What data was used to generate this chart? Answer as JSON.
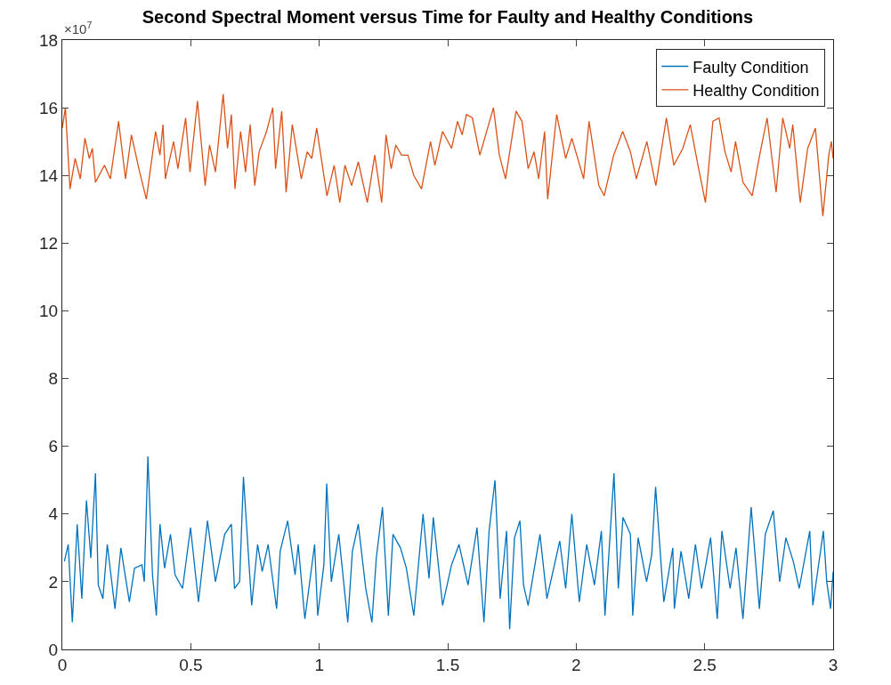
{
  "chart_data": {
    "type": "line",
    "title": "Second Spectral Moment versus Time for Faulty and Healthy Conditions",
    "annotations": [
      "×10$^{7}$"
    ],
    "xlim": [
      0,
      3
    ],
    "xticks": [
      0,
      0.5,
      1,
      1.5,
      2,
      2.5,
      3
    ],
    "ylim": [
      0,
      18
    ],
    "yticks": [
      0,
      2,
      4,
      6,
      8,
      10,
      12,
      14,
      16,
      18
    ],
    "grid": false,
    "legend": "top right",
    "line_style": "solid",
    "marker": "none",
    "series": [
      {
        "name": "Faulty Condition",
        "color": "#0072bd",
        "x": [
          0.008,
          0.023,
          0.039,
          0.058,
          0.076,
          0.094,
          0.111,
          0.129,
          0.14,
          0.158,
          0.175,
          0.205,
          0.228,
          0.261,
          0.281,
          0.31,
          0.319,
          0.333,
          0.351,
          0.366,
          0.38,
          0.398,
          0.421,
          0.439,
          0.468,
          0.499,
          0.53,
          0.565,
          0.596,
          0.632,
          0.658,
          0.67,
          0.69,
          0.705,
          0.737,
          0.76,
          0.778,
          0.801,
          0.834,
          0.848,
          0.877,
          0.906,
          0.918,
          0.944,
          0.982,
          0.994,
          1.018,
          1.029,
          1.047,
          1.076,
          1.111,
          1.129,
          1.152,
          1.181,
          1.205,
          1.222,
          1.246,
          1.269,
          1.287,
          1.316,
          1.339,
          1.368,
          1.404,
          1.427,
          1.444,
          1.48,
          1.515,
          1.544,
          1.579,
          1.614,
          1.641,
          1.661,
          1.684,
          1.704,
          1.729,
          1.741,
          1.76,
          1.781,
          1.795,
          1.813,
          1.859,
          1.886,
          1.936,
          1.959,
          1.983,
          2.012,
          2.041,
          2.071,
          2.098,
          2.112,
          2.147,
          2.164,
          2.182,
          2.211,
          2.22,
          2.241,
          2.274,
          2.294,
          2.309,
          2.341,
          2.376,
          2.382,
          2.408,
          2.438,
          2.464,
          2.488,
          2.523,
          2.549,
          2.567,
          2.599,
          2.622,
          2.649,
          2.681,
          2.713,
          2.736,
          2.767,
          2.792,
          2.816,
          2.845,
          2.868,
          2.909,
          2.921,
          2.962,
          2.975,
          2.99,
          3.0
        ],
        "values": [
          2.6,
          3.1,
          0.8,
          3.7,
          1.5,
          4.4,
          2.7,
          5.2,
          1.9,
          1.5,
          3.1,
          1.2,
          3.0,
          1.4,
          2.4,
          2.5,
          2.0,
          5.7,
          2.2,
          1.0,
          3.7,
          2.4,
          3.4,
          2.2,
          1.8,
          3.6,
          1.4,
          3.8,
          2.0,
          3.4,
          3.7,
          1.8,
          2.0,
          5.1,
          1.3,
          3.1,
          2.3,
          3.1,
          1.2,
          2.9,
          3.8,
          2.2,
          3.1,
          0.9,
          3.1,
          1.0,
          2.5,
          4.9,
          2.0,
          3.4,
          0.8,
          2.9,
          3.7,
          1.8,
          0.8,
          2.7,
          4.2,
          1.0,
          3.4,
          3.0,
          2.4,
          1.0,
          4.0,
          2.1,
          3.9,
          1.3,
          2.5,
          3.1,
          1.9,
          3.6,
          0.8,
          3.5,
          5.0,
          1.5,
          3.5,
          0.6,
          3.3,
          3.8,
          1.9,
          1.3,
          3.4,
          1.5,
          3.2,
          1.8,
          4.0,
          1.4,
          3.1,
          1.9,
          3.5,
          1.0,
          5.2,
          1.8,
          3.9,
          3.4,
          1.0,
          3.3,
          2.0,
          2.8,
          4.8,
          1.4,
          3.0,
          1.2,
          2.9,
          1.5,
          3.1,
          1.8,
          3.3,
          0.9,
          3.5,
          1.8,
          3.0,
          0.9,
          4.2,
          1.2,
          3.4,
          4.1,
          2.0,
          3.3,
          2.6,
          1.8,
          3.5,
          1.3,
          3.5,
          2.0,
          1.2,
          2.3
        ]
      },
      {
        "name": "Healthy Condition",
        "color": "#d95319",
        "x": [
          0.0,
          0.012,
          0.03,
          0.05,
          0.07,
          0.088,
          0.105,
          0.117,
          0.129,
          0.164,
          0.187,
          0.219,
          0.246,
          0.269,
          0.298,
          0.327,
          0.363,
          0.38,
          0.392,
          0.401,
          0.433,
          0.45,
          0.48,
          0.497,
          0.526,
          0.556,
          0.573,
          0.596,
          0.626,
          0.643,
          0.658,
          0.672,
          0.694,
          0.713,
          0.731,
          0.749,
          0.766,
          0.795,
          0.819,
          0.83,
          0.854,
          0.871,
          0.895,
          0.93,
          0.953,
          0.971,
          0.99,
          1.03,
          1.058,
          1.08,
          1.1,
          1.126,
          1.152,
          1.187,
          1.216,
          1.243,
          1.26,
          1.28,
          1.298,
          1.32,
          1.345,
          1.368,
          1.398,
          1.433,
          1.45,
          1.48,
          1.515,
          1.538,
          1.556,
          1.573,
          1.596,
          1.625,
          1.678,
          1.701,
          1.725,
          1.766,
          1.789,
          1.813,
          1.836,
          1.854,
          1.877,
          1.889,
          1.924,
          1.959,
          1.983,
          2.029,
          2.05,
          2.088,
          2.109,
          2.146,
          2.181,
          2.211,
          2.234,
          2.275,
          2.31,
          2.351,
          2.38,
          2.415,
          2.444,
          2.474,
          2.503,
          2.532,
          2.556,
          2.579,
          2.603,
          2.62,
          2.649,
          2.685,
          2.714,
          2.743,
          2.778,
          2.804,
          2.831,
          2.843,
          2.872,
          2.901,
          2.931,
          2.96,
          2.983,
          2.993,
          3.0
        ],
        "values": [
          15.4,
          16.0,
          13.6,
          14.5,
          13.9,
          15.1,
          14.5,
          14.8,
          13.8,
          14.3,
          13.9,
          15.6,
          13.9,
          15.2,
          14.2,
          13.3,
          15.3,
          14.6,
          15.5,
          13.9,
          15.0,
          14.2,
          15.7,
          14.1,
          16.2,
          13.7,
          14.9,
          14.1,
          16.4,
          14.8,
          15.8,
          13.6,
          15.3,
          14.1,
          15.5,
          13.7,
          14.7,
          15.3,
          16.0,
          14.2,
          15.9,
          13.5,
          15.5,
          13.9,
          14.7,
          14.5,
          15.4,
          13.4,
          14.3,
          13.2,
          14.3,
          13.7,
          14.4,
          13.2,
          14.6,
          13.2,
          15.2,
          14.2,
          14.9,
          14.6,
          14.6,
          14.0,
          13.6,
          15.0,
          14.3,
          15.3,
          14.8,
          15.6,
          15.2,
          15.8,
          15.7,
          14.6,
          16.0,
          14.6,
          13.9,
          15.9,
          15.6,
          14.2,
          14.7,
          13.9,
          15.3,
          13.3,
          15.8,
          14.5,
          15.1,
          13.9,
          15.6,
          13.7,
          13.4,
          14.6,
          15.3,
          14.7,
          13.9,
          15.0,
          13.7,
          15.7,
          14.3,
          14.8,
          15.5,
          14.3,
          13.2,
          15.6,
          15.7,
          14.7,
          14.1,
          15.0,
          13.8,
          13.4,
          14.6,
          15.7,
          13.5,
          15.7,
          14.8,
          15.5,
          13.2,
          14.8,
          15.4,
          12.8,
          14.6,
          15.0,
          14.5
        ]
      }
    ]
  }
}
